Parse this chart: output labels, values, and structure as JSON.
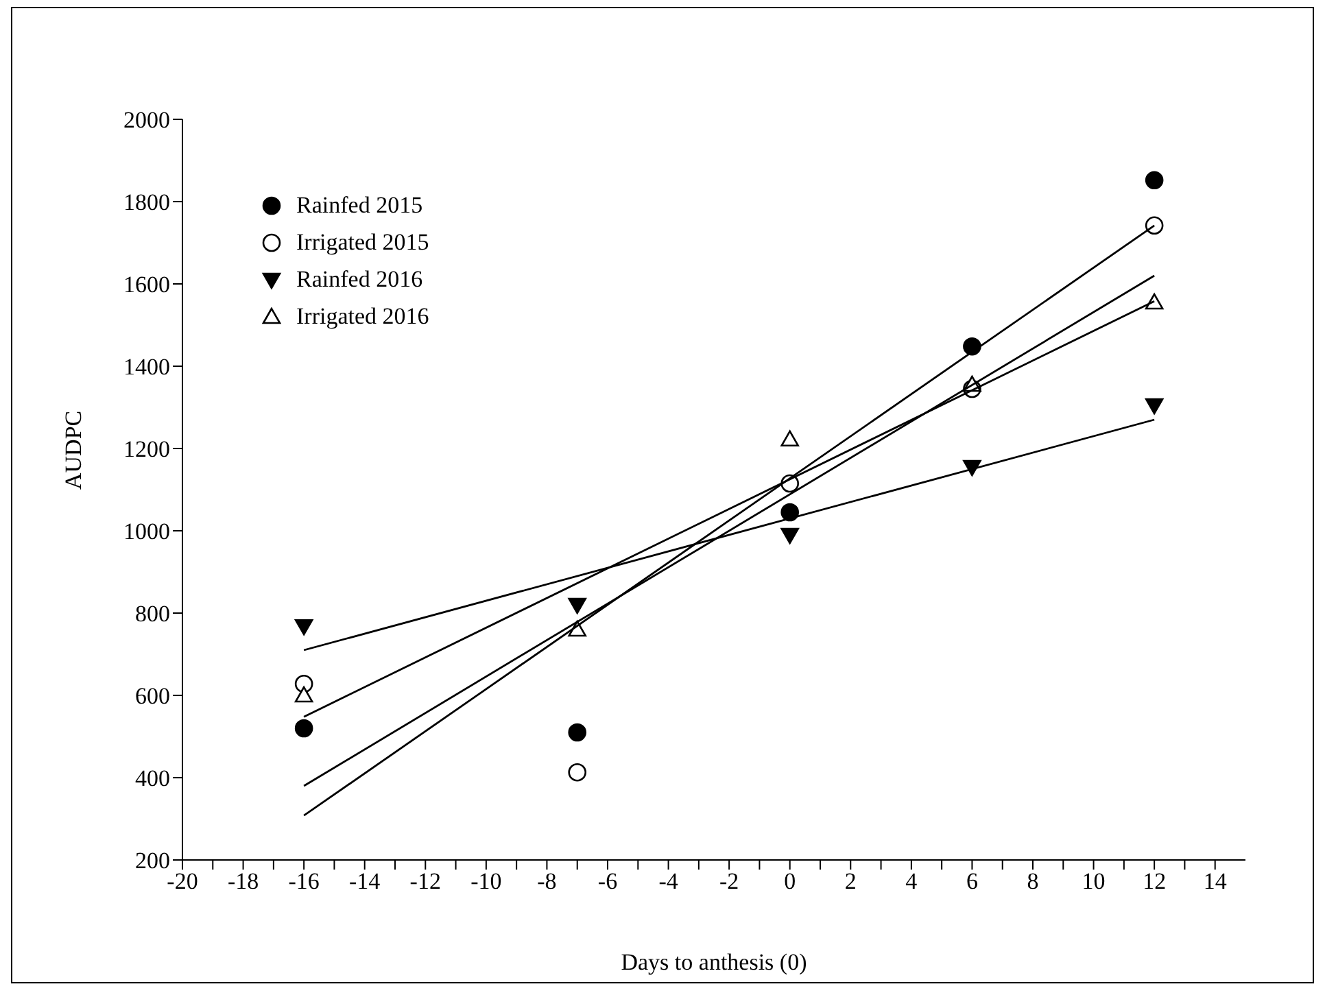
{
  "chart_data": {
    "type": "scatter",
    "xlabel": "Days to anthesis (0)",
    "ylabel": "AUDPC",
    "xlim": [
      -20,
      15
    ],
    "ylim": [
      200,
      2000
    ],
    "xticks": [
      -20,
      {
        "value": -19,
        "label": null
      },
      -18,
      {
        "value": -17,
        "label": null
      },
      -16,
      {
        "value": -15,
        "label": null
      },
      -14,
      {
        "value": -13,
        "label": null
      },
      -12,
      {
        "value": -11,
        "label": null
      },
      -10,
      {
        "value": -9,
        "label": null
      },
      -8,
      {
        "value": -7,
        "label": null
      },
      -6,
      {
        "value": -5,
        "label": null
      },
      -4,
      {
        "value": -3,
        "label": null
      },
      -2,
      {
        "value": -1,
        "label": null
      },
      0,
      {
        "value": 1,
        "label": null
      },
      2,
      {
        "value": 3,
        "label": null
      },
      4,
      {
        "value": 5,
        "label": null
      },
      6,
      {
        "value": 7,
        "label": null
      },
      8,
      {
        "value": 9,
        "label": null
      },
      10,
      {
        "value": 11,
        "label": null
      },
      12,
      {
        "value": 13,
        "label": null
      },
      14
    ],
    "yticks": [
      200,
      400,
      600,
      800,
      1000,
      1200,
      1400,
      1600,
      1800,
      2000
    ],
    "legend": "top left",
    "series": [
      {
        "name": "Rainfed 2015",
        "marker": "circle",
        "color": "#000000",
        "x": [
          -16,
          -7,
          0,
          6,
          12
        ],
        "values": [
          520,
          510,
          1045,
          1448,
          1852
        ]
      },
      {
        "name": "Irrigated 2015",
        "marker": "circle-open",
        "color": "#000000",
        "x": [
          -16,
          -7,
          0,
          6,
          12
        ],
        "values": [
          628,
          413,
          1115,
          1345,
          1742
        ]
      },
      {
        "name": "Rainfed 2016",
        "marker": "triangle-down",
        "color": "#000000",
        "x": [
          -16,
          -7,
          0,
          6,
          12
        ],
        "values": [
          768,
          820,
          990,
          1155,
          1305
        ]
      },
      {
        "name": "Irrigated 2016",
        "marker": "triangle-open",
        "color": "#000000",
        "x": [
          -16,
          -7,
          0,
          6,
          12
        ],
        "values": [
          600,
          760,
          1222,
          1355,
          1555
        ]
      },
      {
        "type": "line",
        "marker": "none",
        "line_style": "solid",
        "color": "#000000",
        "x": [
          -16,
          12
        ],
        "values": [
          308,
          1742
        ]
      },
      {
        "type": "line",
        "marker": "none",
        "line_style": "solid",
        "color": "#000000",
        "x": [
          -16,
          12
        ],
        "values": [
          380,
          1620
        ]
      },
      {
        "type": "line",
        "marker": "none",
        "line_style": "solid",
        "color": "#000000",
        "x": [
          -16,
          12
        ],
        "values": [
          710,
          1270
        ]
      },
      {
        "type": "line",
        "marker": "none",
        "line_style": "solid",
        "color": "#000000",
        "x": [
          -16,
          12
        ],
        "values": [
          548,
          1558
        ]
      }
    ]
  }
}
